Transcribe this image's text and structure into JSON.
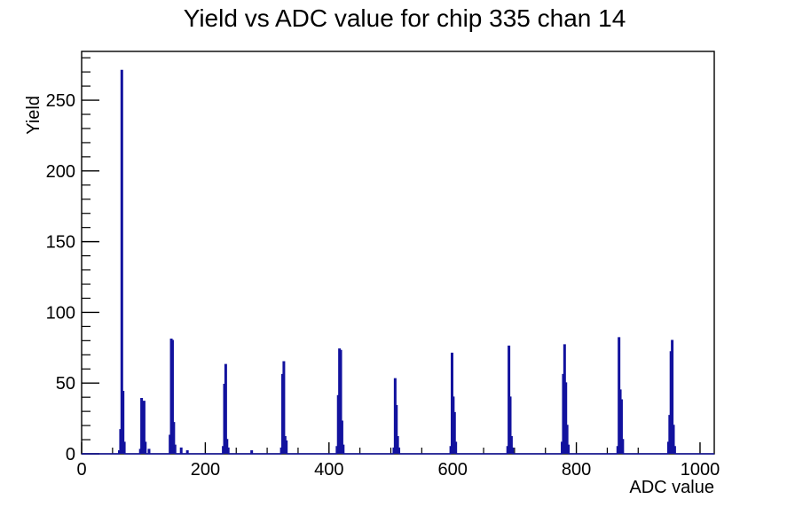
{
  "chart_data": {
    "type": "bar",
    "title": "Yield vs ADC value for chip 335 chan 14",
    "xlabel": "ADC value",
    "ylabel": "Yield",
    "xlim": [
      0,
      1023
    ],
    "ylim": [
      0,
      284.5
    ],
    "x_major_ticks": [
      0,
      200,
      400,
      600,
      800,
      1000
    ],
    "x_minor_step": 50,
    "y_major_ticks": [
      0,
      50,
      100,
      150,
      200,
      250
    ],
    "y_minor_step": 10,
    "grid": false,
    "legend": "none",
    "line_color": "#12129e",
    "axis_color": "#000000",
    "background_color": "#ffffff",
    "bin_width": 2,
    "bins": [
      [
        60,
        2
      ],
      [
        62,
        17
      ],
      [
        64,
        271
      ],
      [
        66,
        44
      ],
      [
        68,
        8
      ],
      [
        94,
        3
      ],
      [
        96,
        39
      ],
      [
        98,
        15
      ],
      [
        100,
        37
      ],
      [
        102,
        8
      ],
      [
        108,
        3
      ],
      [
        142,
        13
      ],
      [
        144,
        81
      ],
      [
        146,
        80
      ],
      [
        148,
        22
      ],
      [
        150,
        6
      ],
      [
        160,
        4
      ],
      [
        170,
        2
      ],
      [
        228,
        5
      ],
      [
        230,
        49
      ],
      [
        232,
        63
      ],
      [
        234,
        10
      ],
      [
        236,
        4
      ],
      [
        274,
        2
      ],
      [
        322,
        4
      ],
      [
        324,
        56
      ],
      [
        326,
        65
      ],
      [
        328,
        12
      ],
      [
        330,
        9
      ],
      [
        412,
        5
      ],
      [
        414,
        41
      ],
      [
        416,
        74
      ],
      [
        418,
        73
      ],
      [
        420,
        23
      ],
      [
        422,
        6
      ],
      [
        504,
        4
      ],
      [
        506,
        53
      ],
      [
        508,
        34
      ],
      [
        510,
        12
      ],
      [
        512,
        4
      ],
      [
        596,
        5
      ],
      [
        598,
        71
      ],
      [
        600,
        40
      ],
      [
        602,
        29
      ],
      [
        604,
        8
      ],
      [
        688,
        5
      ],
      [
        690,
        76
      ],
      [
        692,
        40
      ],
      [
        694,
        12
      ],
      [
        696,
        4
      ],
      [
        776,
        8
      ],
      [
        778,
        56
      ],
      [
        780,
        77
      ],
      [
        782,
        50
      ],
      [
        784,
        20
      ],
      [
        786,
        6
      ],
      [
        866,
        5
      ],
      [
        868,
        82
      ],
      [
        870,
        45
      ],
      [
        872,
        38
      ],
      [
        874,
        10
      ],
      [
        948,
        8
      ],
      [
        950,
        27
      ],
      [
        952,
        72
      ],
      [
        954,
        80
      ],
      [
        956,
        20
      ],
      [
        958,
        5
      ]
    ],
    "peaks_summary": [
      {
        "adc": 64,
        "yield": 271
      },
      {
        "adc": 97,
        "yield": 39
      },
      {
        "adc": 146,
        "yield": 81
      },
      {
        "adc": 233,
        "yield": 63
      },
      {
        "adc": 327,
        "yield": 65
      },
      {
        "adc": 417,
        "yield": 74
      },
      {
        "adc": 507,
        "yield": 53
      },
      {
        "adc": 599,
        "yield": 71
      },
      {
        "adc": 691,
        "yield": 76
      },
      {
        "adc": 781,
        "yield": 77
      },
      {
        "adc": 869,
        "yield": 82
      },
      {
        "adc": 954,
        "yield": 80
      }
    ]
  }
}
